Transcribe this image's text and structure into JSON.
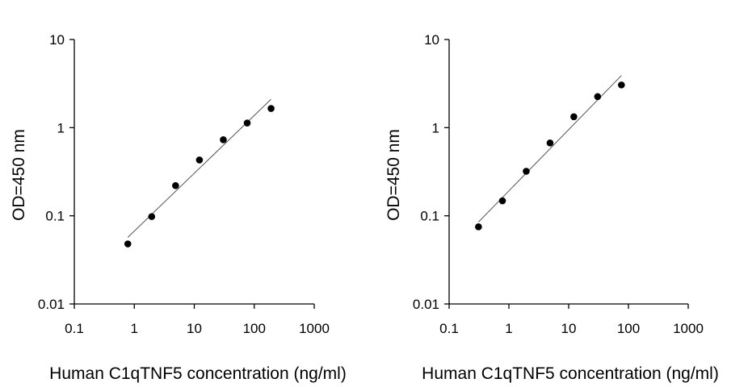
{
  "chart_data": [
    {
      "type": "scatter",
      "xlabel": "Human C1qTNF5 concentration (ng/ml)",
      "ylabel": "OD=450 nm",
      "xscale": "log",
      "yscale": "log",
      "xlim": [
        0.1,
        1000
      ],
      "ylim": [
        0.01,
        10
      ],
      "x_ticks": [
        "0.1",
        "1",
        "10",
        "100",
        "1000"
      ],
      "y_ticks": [
        "0.01",
        "0.1",
        "1",
        "10"
      ],
      "grid": false,
      "legend": "none",
      "marker_color": "#000000",
      "fit_line_color": "#555555",
      "x": [
        0.78,
        1.95,
        4.88,
        12.2,
        30.5,
        76.3,
        190.7
      ],
      "y": [
        0.048,
        0.098,
        0.22,
        0.43,
        0.73,
        1.13,
        1.65
      ],
      "fit_line": {
        "x": [
          0.78,
          190.7
        ],
        "y": [
          0.057,
          2.1
        ]
      }
    },
    {
      "type": "scatter",
      "xlabel": "Human C1qTNF5 concentration (ng/ml)",
      "ylabel": "OD=450 nm",
      "xscale": "log",
      "yscale": "log",
      "xlim": [
        0.1,
        1000
      ],
      "ylim": [
        0.01,
        10
      ],
      "x_ticks": [
        "0.1",
        "1",
        "10",
        "100",
        "1000"
      ],
      "y_ticks": [
        "0.01",
        "0.1",
        "1",
        "10"
      ],
      "grid": false,
      "legend": "none",
      "marker_color": "#000000",
      "fit_line_color": "#555555",
      "x": [
        0.31,
        0.78,
        1.95,
        4.88,
        12.2,
        30.5,
        76.3
      ],
      "y": [
        0.075,
        0.148,
        0.32,
        0.67,
        1.33,
        2.25,
        3.05
      ],
      "fit_line": {
        "x": [
          0.31,
          76.3
        ],
        "y": [
          0.085,
          3.9
        ]
      }
    }
  ]
}
